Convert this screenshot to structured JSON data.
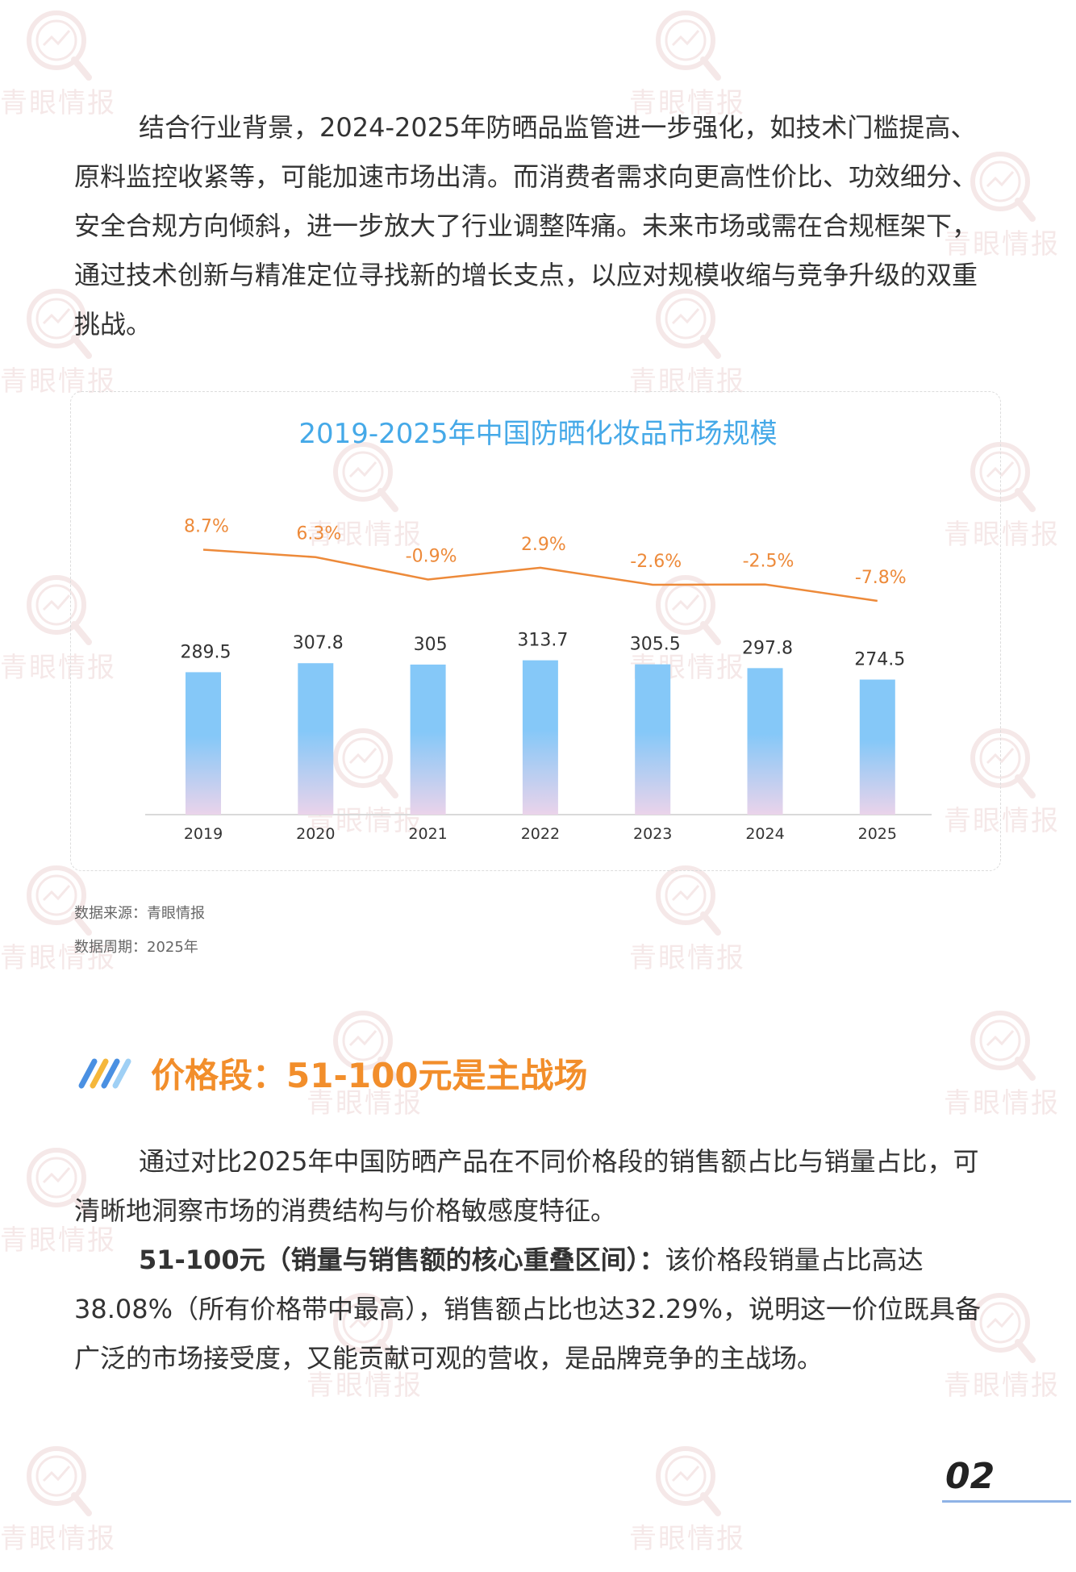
{
  "watermark": {
    "text": "青眼情报"
  },
  "intro": {
    "text": "结合行业背景，2024-2025年防晒品监管进一步强化，如技术门槛提高、原料监控收紧等，可能加速市场出清。而消费者需求向更高性价比、功效细分、安全合规方向倾斜，进一步放大了行业调整阵痛。未来市场或需在合规框架下，通过技术创新与精准定位寻找新的增长支点，以应对规模收缩与竞争升级的双重挑战。"
  },
  "chart_data": {
    "type": "bar",
    "title": "2019-2025年中国防晒化妆品市场规模",
    "categories": [
      "2019",
      "2020",
      "2021",
      "2022",
      "2023",
      "2024",
      "2025"
    ],
    "series": [
      {
        "type": "bar",
        "values": [
          289.5,
          307.8,
          305,
          313.7,
          305.5,
          297.8,
          274.5
        ]
      },
      {
        "type": "line",
        "values": [
          8.7,
          6.3,
          -0.9,
          2.9,
          -2.6,
          -2.5,
          -7.8
        ]
      }
    ],
    "bar_labels": [
      "289.5",
      "307.8",
      "305",
      "313.7",
      "305.5",
      "297.8",
      "274.5"
    ],
    "line_labels": [
      "8.7%",
      "6.3%",
      "-0.9%",
      "2.9%",
      "-2.6%",
      "-2.5%",
      "-7.8%"
    ],
    "colors": {
      "bar_top": "#85c8f8",
      "bar_bottom": "#ead3ea",
      "line": "#ed8a3a",
      "title": "#45a9e8"
    },
    "grid": false,
    "legend": "none"
  },
  "source": {
    "line1": "数据来源：青眼情报",
    "line2": "数据周期：2025年"
  },
  "section": {
    "icon": "stripes-logo-icon",
    "title": "价格段：51-100元是主战场"
  },
  "para2": {
    "text": "通过对比2025年中国防晒产品在不同价格段的销售额占比与销量占比，可清晰地洞察市场的消费结构与价格敏感度特征。"
  },
  "para3": {
    "bold": "51-100元（销量与销售额的核心重叠区间）：",
    "text": "该价格段销量占比高达38.08%（所有价格带中最高），销售额占比也达32.29%，说明这一价位既具备广泛的市场接受度，又能贡献可观的营收，是品牌竞争的主战场。"
  },
  "page": {
    "number": "02"
  }
}
